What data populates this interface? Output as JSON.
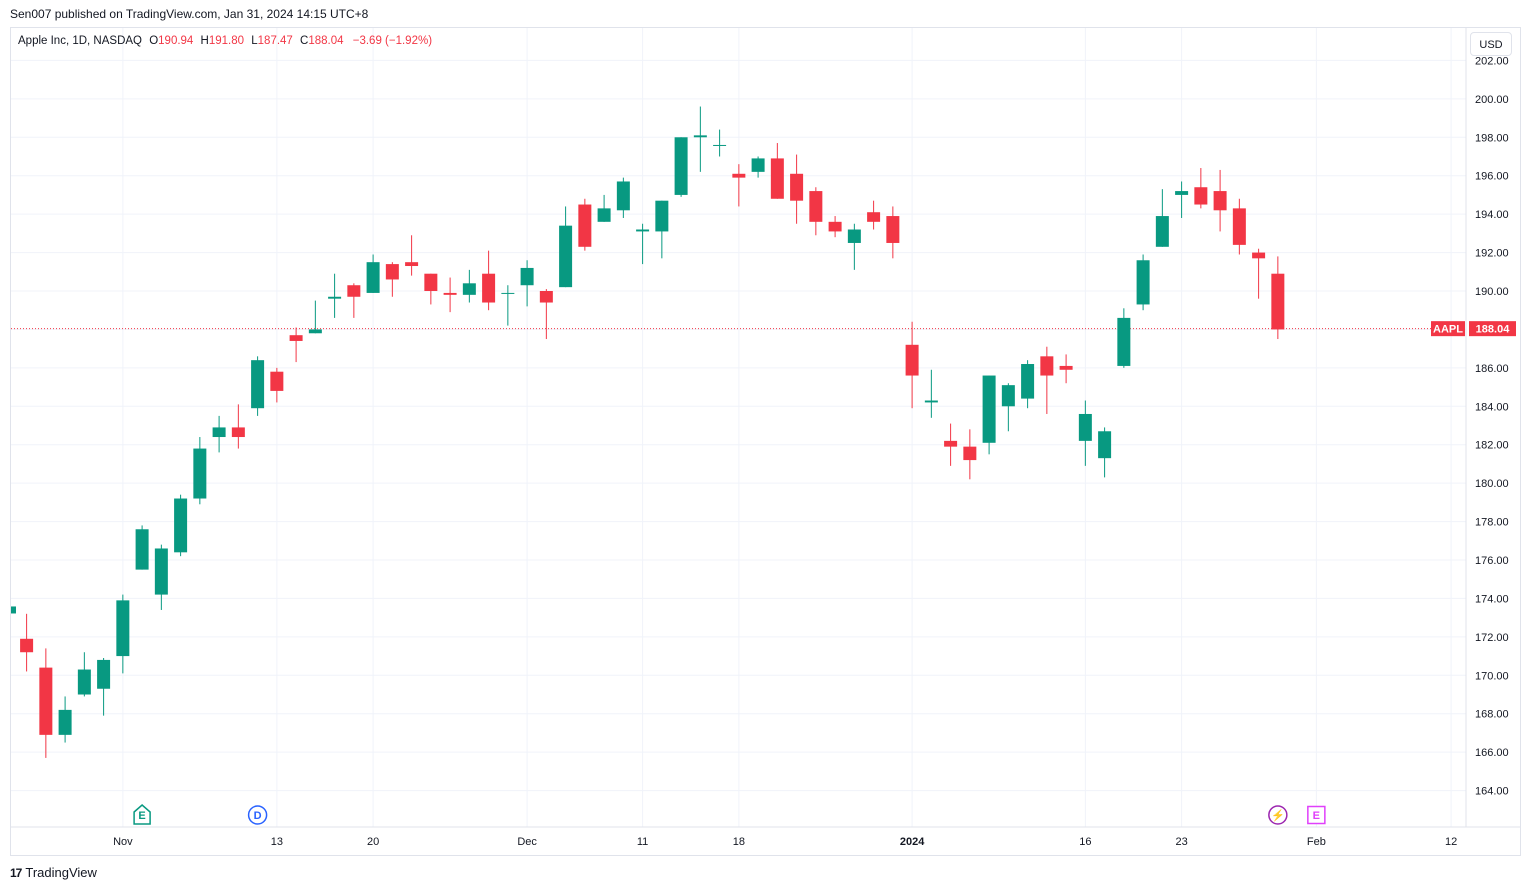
{
  "publisher": "Sen007 published on TradingView.com, Jan 31, 2024 14:15 UTC+8",
  "legend": {
    "name": "Apple Inc, 1D, NASDAQ",
    "o_label": "O",
    "o_value": "190.94",
    "h_label": "H",
    "h_value": "191.80",
    "l_label": "L",
    "l_value": "187.47",
    "c_label": "C",
    "c_value": "188.04",
    "change": "−3.69 (−1.92%)"
  },
  "currency": "USD",
  "footer": {
    "logo": "17",
    "brand": "TradingView"
  },
  "colors": {
    "up": "#089981",
    "down": "#f23645",
    "grid": "#f0f3fa",
    "last_price": "#f23645"
  },
  "chart_data": {
    "type": "candlestick",
    "symbol": "AAPL",
    "last_price_label": "188.04",
    "last_price": 188.04,
    "ylim": [
      163,
      203
    ],
    "y_ticks": [
      "164.00",
      "166.00",
      "168.00",
      "170.00",
      "172.00",
      "174.00",
      "176.00",
      "178.00",
      "180.00",
      "182.00",
      "184.00",
      "186.00",
      "188.00",
      "190.00",
      "192.00",
      "194.00",
      "196.00",
      "198.00",
      "200.00",
      "202.00"
    ],
    "x_ticks": [
      {
        "label": "Nov",
        "date": "2023-11-01",
        "bold": false
      },
      {
        "label": "13",
        "date": "2023-11-13",
        "bold": false
      },
      {
        "label": "20",
        "date": "2023-11-20",
        "bold": false
      },
      {
        "label": "Dec",
        "date": "2023-12-01",
        "bold": false
      },
      {
        "label": "11",
        "date": "2023-12-11",
        "bold": false
      },
      {
        "label": "18",
        "date": "2023-12-18",
        "bold": false
      },
      {
        "label": "2024",
        "date": "2024-01-02",
        "bold": true
      },
      {
        "label": "16",
        "date": "2024-01-16",
        "bold": false
      },
      {
        "label": "23",
        "date": "2024-01-23",
        "bold": false
      },
      {
        "label": "Feb",
        "date": "2024-02-01",
        "bold": false
      },
      {
        "label": "12",
        "date": "2024-02-12",
        "bold": false
      }
    ],
    "events": [
      {
        "label": "E",
        "date": "2023-11-02",
        "color": "#089981",
        "shape": "house"
      },
      {
        "label": "D",
        "date": "2023-11-10",
        "color": "#2962ff",
        "shape": "circle"
      },
      {
        "label": "⚡",
        "date": "2024-01-30",
        "color": "#9c27b0",
        "shape": "circle"
      },
      {
        "label": "E",
        "date": "2024-02-01",
        "color": "#e040fb",
        "shape": "square"
      }
    ],
    "candles": [
      {
        "d": "2023-10-25",
        "o": 171.9,
        "h": 173.2,
        "l": 170.2,
        "c": 171.2
      },
      {
        "d": "2023-10-26",
        "o": 170.4,
        "h": 171.4,
        "l": 165.7,
        "c": 166.9
      },
      {
        "d": "2023-10-27",
        "o": 166.9,
        "h": 168.9,
        "l": 166.5,
        "c": 168.2
      },
      {
        "d": "2023-10-30",
        "o": 169.0,
        "h": 171.2,
        "l": 168.9,
        "c": 170.3
      },
      {
        "d": "2023-10-31",
        "o": 169.3,
        "h": 170.9,
        "l": 167.9,
        "c": 170.8
      },
      {
        "d": "2023-11-01",
        "o": 171.0,
        "h": 174.2,
        "l": 170.1,
        "c": 173.9
      },
      {
        "d": "2023-11-02",
        "o": 175.5,
        "h": 177.8,
        "l": 175.5,
        "c": 177.6
      },
      {
        "d": "2023-11-03",
        "o": 174.2,
        "h": 176.8,
        "l": 173.4,
        "c": 176.6
      },
      {
        "d": "2023-11-06",
        "o": 176.4,
        "h": 179.4,
        "l": 176.2,
        "c": 179.2
      },
      {
        "d": "2023-11-07",
        "o": 179.2,
        "h": 182.4,
        "l": 178.9,
        "c": 181.8
      },
      {
        "d": "2023-11-08",
        "o": 182.4,
        "h": 183.5,
        "l": 181.6,
        "c": 182.9
      },
      {
        "d": "2023-11-09",
        "o": 182.9,
        "h": 184.1,
        "l": 181.8,
        "c": 182.4
      },
      {
        "d": "2023-11-10",
        "o": 183.9,
        "h": 186.6,
        "l": 183.5,
        "c": 186.4
      },
      {
        "d": "2023-11-13",
        "o": 185.8,
        "h": 186.0,
        "l": 184.2,
        "c": 184.8
      },
      {
        "d": "2023-11-14",
        "o": 187.7,
        "h": 188.1,
        "l": 186.3,
        "c": 187.4
      },
      {
        "d": "2023-11-15",
        "o": 187.8,
        "h": 189.5,
        "l": 187.8,
        "c": 188.0
      },
      {
        "d": "2023-11-16",
        "o": 189.6,
        "h": 190.9,
        "l": 188.6,
        "c": 189.7
      },
      {
        "d": "2023-11-17",
        "o": 190.3,
        "h": 190.4,
        "l": 188.6,
        "c": 189.7
      },
      {
        "d": "2023-11-20",
        "o": 189.9,
        "h": 191.9,
        "l": 189.9,
        "c": 191.5
      },
      {
        "d": "2023-11-21",
        "o": 191.4,
        "h": 191.5,
        "l": 189.7,
        "c": 190.6
      },
      {
        "d": "2023-11-22",
        "o": 191.5,
        "h": 192.9,
        "l": 190.8,
        "c": 191.3
      },
      {
        "d": "2023-11-24",
        "o": 190.9,
        "h": 190.9,
        "l": 189.3,
        "c": 190.0
      },
      {
        "d": "2023-11-27",
        "o": 189.9,
        "h": 190.7,
        "l": 188.9,
        "c": 189.8
      },
      {
        "d": "2023-11-28",
        "o": 189.8,
        "h": 191.1,
        "l": 189.4,
        "c": 190.4
      },
      {
        "d": "2023-11-29",
        "o": 190.9,
        "h": 192.1,
        "l": 189.0,
        "c": 189.4
      },
      {
        "d": "2023-11-30",
        "o": 189.9,
        "h": 190.3,
        "l": 188.2,
        "c": 189.9
      },
      {
        "d": "2023-12-01",
        "o": 190.3,
        "h": 191.6,
        "l": 189.2,
        "c": 191.2
      },
      {
        "d": "2023-12-04",
        "o": 190.0,
        "h": 190.1,
        "l": 187.5,
        "c": 189.4
      },
      {
        "d": "2023-12-05",
        "o": 190.2,
        "h": 194.4,
        "l": 190.2,
        "c": 193.4
      },
      {
        "d": "2023-12-06",
        "o": 194.5,
        "h": 194.8,
        "l": 192.1,
        "c": 192.3
      },
      {
        "d": "2023-12-07",
        "o": 193.6,
        "h": 195.0,
        "l": 193.6,
        "c": 194.3
      },
      {
        "d": "2023-12-08",
        "o": 194.2,
        "h": 195.9,
        "l": 193.8,
        "c": 195.7
      },
      {
        "d": "2023-12-11",
        "o": 193.1,
        "h": 193.5,
        "l": 191.4,
        "c": 193.2
      },
      {
        "d": "2023-12-12",
        "o": 193.1,
        "h": 194.7,
        "l": 191.7,
        "c": 194.7
      },
      {
        "d": "2023-12-13",
        "o": 195.0,
        "h": 198.0,
        "l": 194.9,
        "c": 198.0
      },
      {
        "d": "2023-12-14",
        "o": 198.0,
        "h": 199.6,
        "l": 196.2,
        "c": 198.1
      },
      {
        "d": "2023-12-15",
        "o": 197.6,
        "h": 198.4,
        "l": 197.0,
        "c": 197.6
      },
      {
        "d": "2023-12-18",
        "o": 196.1,
        "h": 196.6,
        "l": 194.4,
        "c": 195.9
      },
      {
        "d": "2023-12-19",
        "o": 196.2,
        "h": 197.0,
        "l": 195.9,
        "c": 196.9
      },
      {
        "d": "2023-12-20",
        "o": 196.9,
        "h": 197.7,
        "l": 194.8,
        "c": 194.8
      },
      {
        "d": "2023-12-21",
        "o": 196.1,
        "h": 197.1,
        "l": 193.5,
        "c": 194.7
      },
      {
        "d": "2023-12-22",
        "o": 195.2,
        "h": 195.4,
        "l": 192.9,
        "c": 193.6
      },
      {
        "d": "2023-12-26",
        "o": 193.6,
        "h": 193.9,
        "l": 192.8,
        "c": 193.1
      },
      {
        "d": "2023-12-27",
        "o": 192.5,
        "h": 193.5,
        "l": 191.1,
        "c": 193.2
      },
      {
        "d": "2023-12-28",
        "o": 194.1,
        "h": 194.7,
        "l": 193.2,
        "c": 193.6
      },
      {
        "d": "2023-12-29",
        "o": 193.9,
        "h": 194.4,
        "l": 191.7,
        "c": 192.5
      },
      {
        "d": "2024-01-02",
        "o": 187.2,
        "h": 188.4,
        "l": 183.9,
        "c": 185.6
      },
      {
        "d": "2024-01-03",
        "o": 184.2,
        "h": 185.9,
        "l": 183.4,
        "c": 184.3
      },
      {
        "d": "2024-01-04",
        "o": 182.2,
        "h": 183.1,
        "l": 180.9,
        "c": 181.9
      },
      {
        "d": "2024-01-05",
        "o": 181.9,
        "h": 182.8,
        "l": 180.2,
        "c": 181.2
      },
      {
        "d": "2024-01-08",
        "o": 182.1,
        "h": 185.6,
        "l": 181.5,
        "c": 185.6
      },
      {
        "d": "2024-01-09",
        "o": 184.0,
        "h": 185.2,
        "l": 182.7,
        "c": 185.1
      },
      {
        "d": "2024-01-10",
        "o": 184.4,
        "h": 186.4,
        "l": 183.9,
        "c": 186.2
      },
      {
        "d": "2024-01-11",
        "o": 186.6,
        "h": 187.1,
        "l": 183.6,
        "c": 185.6
      },
      {
        "d": "2024-01-12",
        "o": 186.1,
        "h": 186.7,
        "l": 185.2,
        "c": 185.9
      },
      {
        "d": "2024-01-16",
        "o": 182.2,
        "h": 184.3,
        "l": 180.9,
        "c": 183.6
      },
      {
        "d": "2024-01-17",
        "o": 181.3,
        "h": 182.9,
        "l": 180.3,
        "c": 182.7
      },
      {
        "d": "2024-01-18",
        "o": 186.1,
        "h": 189.1,
        "l": 186.0,
        "c": 188.6
      },
      {
        "d": "2024-01-19",
        "o": 189.3,
        "h": 191.9,
        "l": 189.0,
        "c": 191.6
      },
      {
        "d": "2024-01-22",
        "o": 192.3,
        "h": 195.3,
        "l": 192.3,
        "c": 193.9
      },
      {
        "d": "2024-01-23",
        "o": 195.0,
        "h": 195.7,
        "l": 193.8,
        "c": 195.2
      },
      {
        "d": "2024-01-24",
        "o": 195.4,
        "h": 196.4,
        "l": 194.3,
        "c": 194.5
      },
      {
        "d": "2024-01-25",
        "o": 195.2,
        "h": 196.3,
        "l": 193.1,
        "c": 194.2
      },
      {
        "d": "2024-01-26",
        "o": 194.3,
        "h": 194.8,
        "l": 191.9,
        "c": 192.4
      },
      {
        "d": "2024-01-29",
        "o": 192.0,
        "h": 192.2,
        "l": 189.6,
        "c": 191.7
      },
      {
        "d": "2024-01-30",
        "o": 190.9,
        "h": 191.8,
        "l": 187.5,
        "c": 188.0
      }
    ]
  }
}
